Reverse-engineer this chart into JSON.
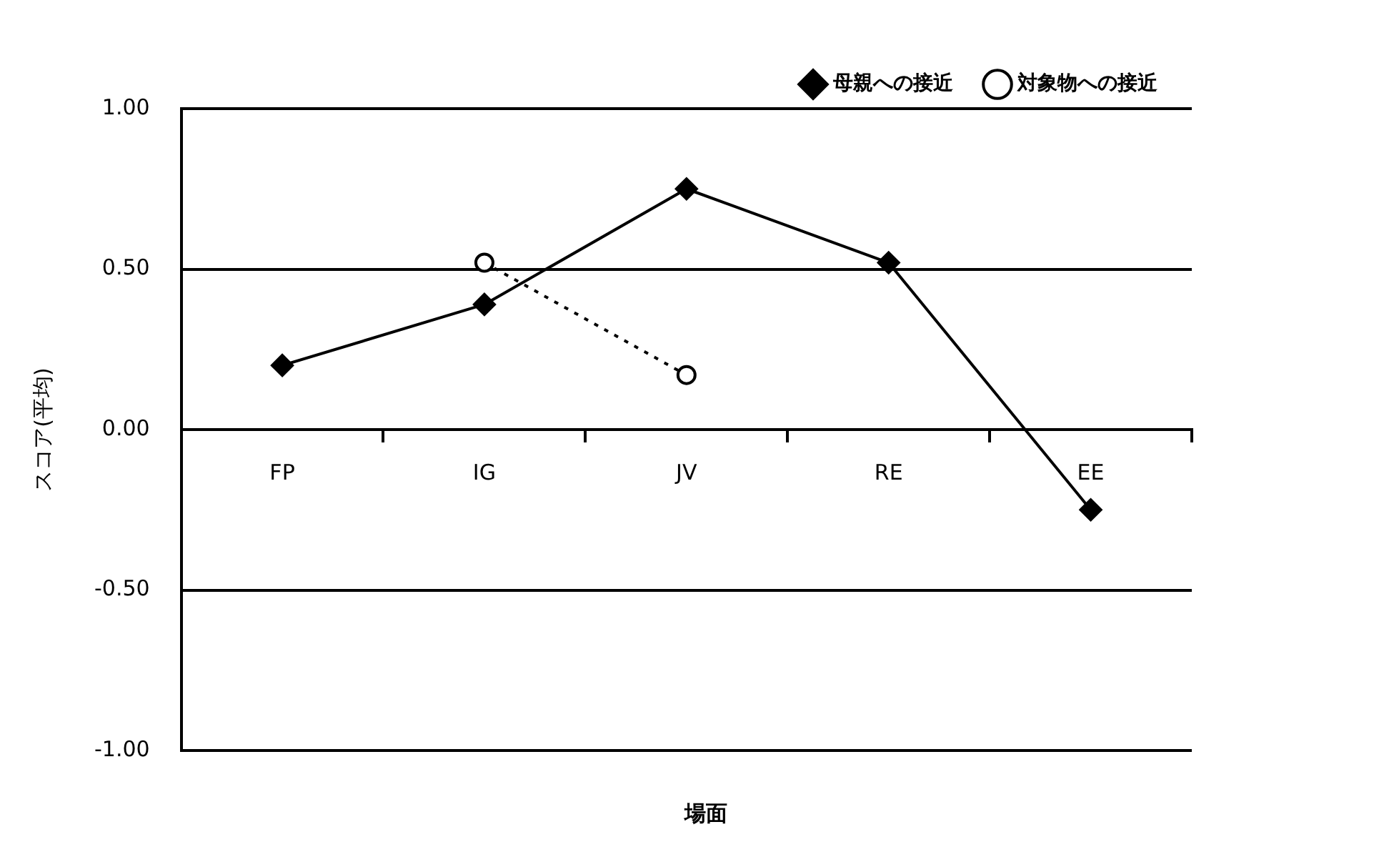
{
  "chart_data": {
    "type": "line",
    "xlabel": "場面",
    "ylabel": "スコア(平均)",
    "categories": [
      "FP",
      "IG",
      "JV",
      "RE",
      "EE"
    ],
    "series": [
      {
        "name": "母親への接近",
        "color": "#000000",
        "values": [
          0.2,
          0.39,
          0.75,
          0.52,
          -0.25
        ],
        "marker": "diamond",
        "line_style": "solid"
      },
      {
        "name": "対象物への接近",
        "color": "#000000",
        "values": [
          null,
          0.52,
          0.17,
          null,
          null
        ],
        "marker": "circle",
        "line_style": "dotted"
      }
    ],
    "ylim": [
      -1,
      1
    ],
    "yticks": [
      {
        "value": -1,
        "label": "-1.00"
      },
      {
        "value": -0.5,
        "label": "-0.50"
      },
      {
        "value": 0,
        "label": "0.00"
      },
      {
        "value": 0.5,
        "label": "0.50"
      },
      {
        "value": 1,
        "label": "1.00"
      }
    ],
    "grid": "y",
    "legend": "top right"
  }
}
